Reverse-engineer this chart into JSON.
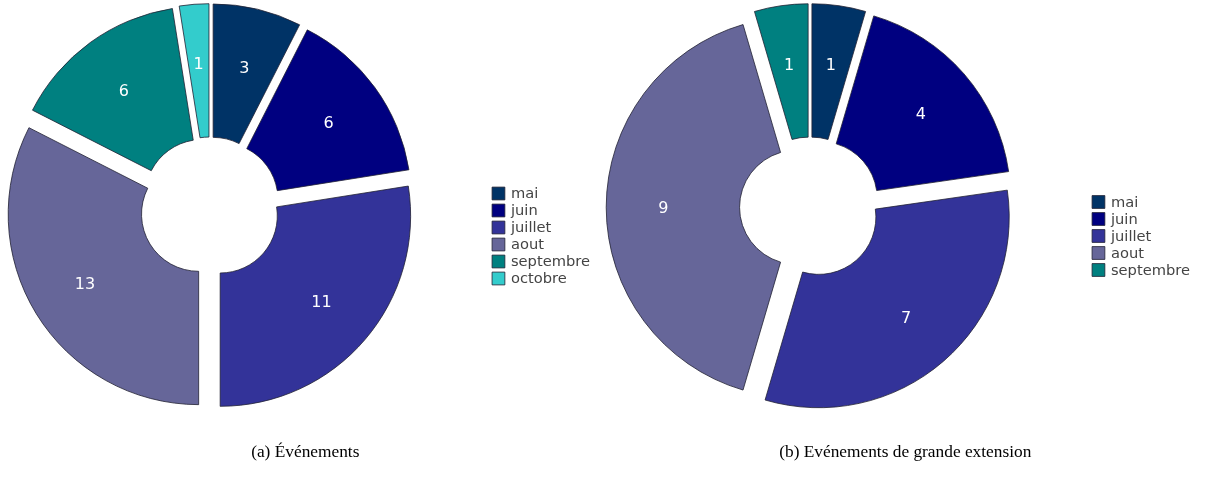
{
  "chart_data": [
    {
      "type": "donut",
      "title": "(a) Événements",
      "categories": [
        "mai",
        "juin",
        "juillet",
        "aout",
        "septembre",
        "octobre"
      ],
      "values": [
        3,
        6,
        11,
        13,
        6,
        1
      ],
      "colors": [
        "#003366",
        "#000080",
        "#333399",
        "#666699",
        "#008080",
        "#33cccc"
      ],
      "data_labels": true,
      "legend": "right"
    },
    {
      "type": "donut",
      "title": "(b) Evénements de grande extension",
      "categories": [
        "mai",
        "juin",
        "juillet",
        "aout",
        "septembre"
      ],
      "values": [
        1,
        4,
        7,
        9,
        1
      ],
      "colors": [
        "#003366",
        "#000080",
        "#333399",
        "#666699",
        "#008080"
      ],
      "data_labels": true,
      "legend": "right"
    }
  ]
}
